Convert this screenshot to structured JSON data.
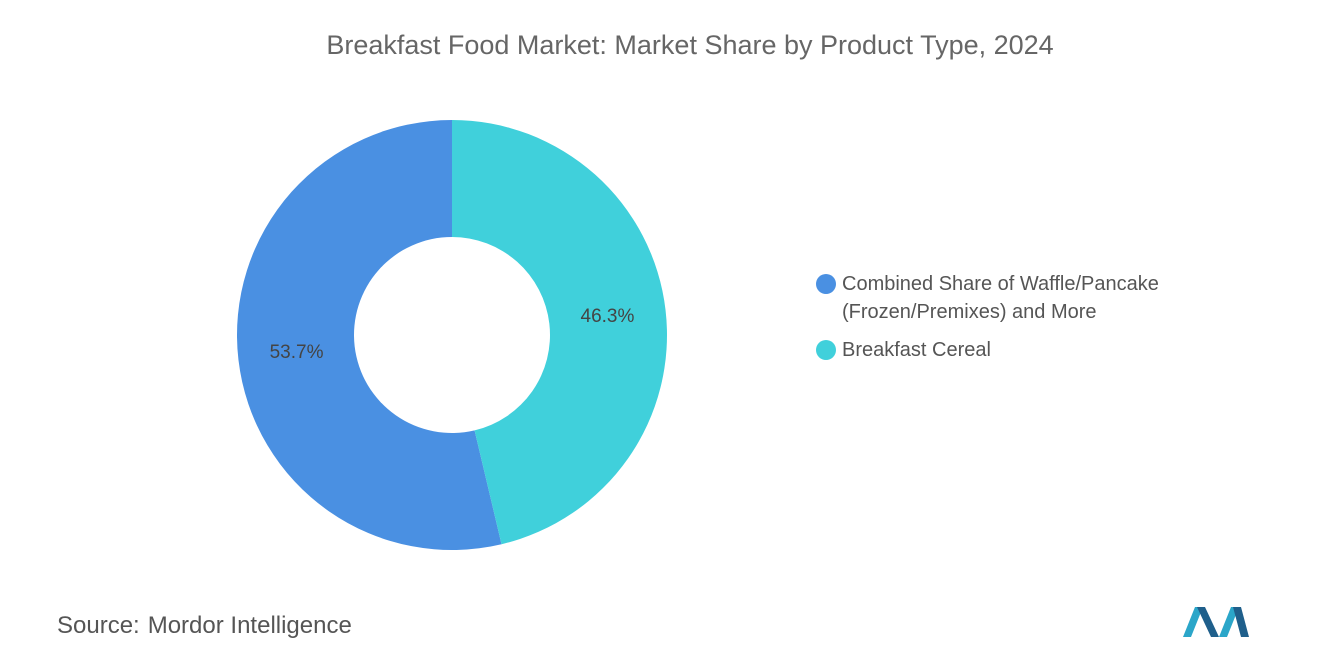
{
  "chart_data": {
    "type": "donut",
    "title": "Breakfast Food Market: Market Share by Product Type, 2024",
    "categories": [
      "Combined Share of Waffle/Pancake (Frozen/Premixes) and More",
      "Breakfast Cereal"
    ],
    "values": [
      53.7,
      46.3
    ],
    "value_labels": [
      "53.7%",
      "46.3%"
    ],
    "colors": [
      "#4a90e2",
      "#40d0db"
    ],
    "legend": "right"
  },
  "source_label": "Source:",
  "source": "Mordor Intelligence"
}
